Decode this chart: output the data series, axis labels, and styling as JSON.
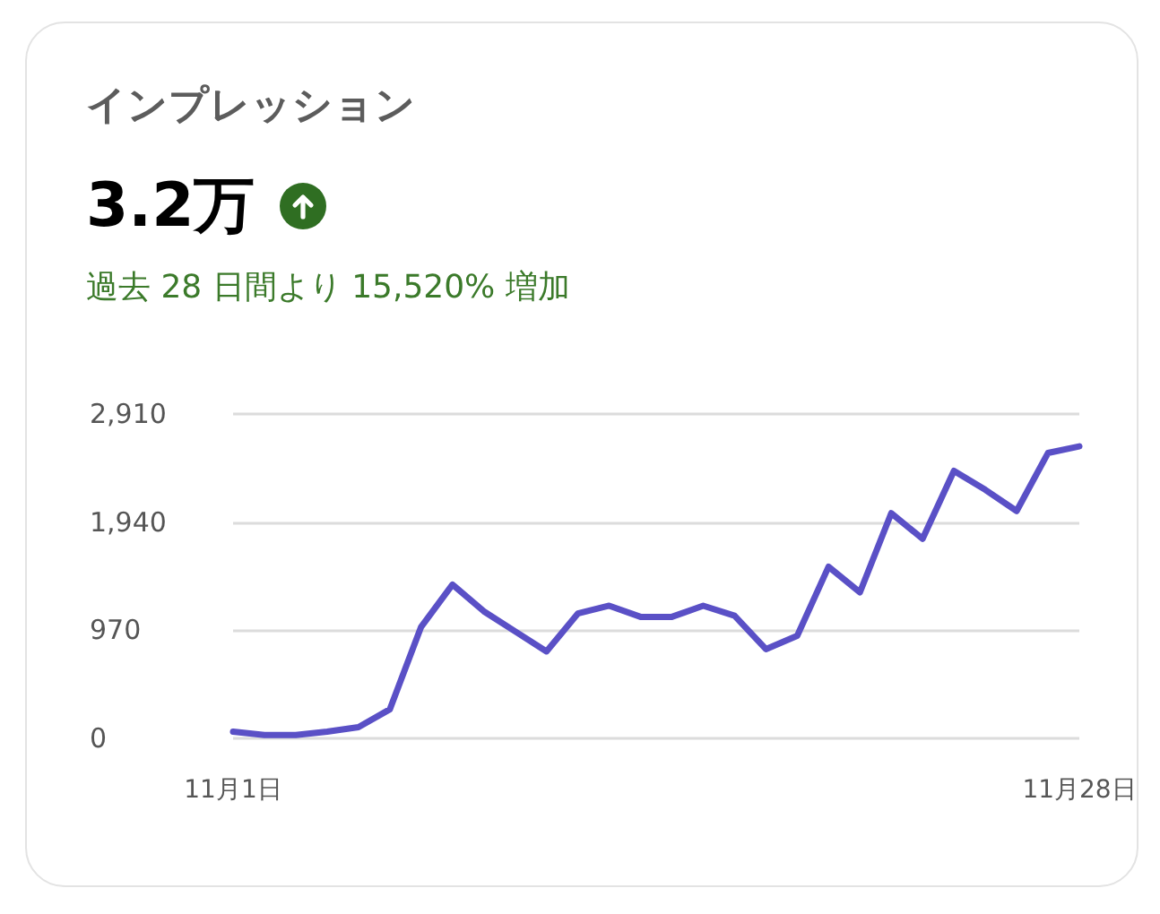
{
  "chart_data": {
    "type": "line",
    "title": "インプレッション",
    "subtitle": "3.2万",
    "annotations": [
      "過去 28 日間より 15,520% 増加"
    ],
    "categories": [
      "11月1日",
      null,
      null,
      null,
      null,
      null,
      null,
      null,
      null,
      null,
      null,
      null,
      null,
      null,
      null,
      null,
      null,
      null,
      null,
      null,
      null,
      null,
      null,
      null,
      null,
      null,
      null,
      "11月28日"
    ],
    "series": [
      {
        "color": "#5a50c6",
        "values": [
          60,
          30,
          30,
          60,
          100,
          260,
          1000,
          1380,
          1140,
          960,
          780,
          1120,
          1190,
          1090,
          1090,
          1190,
          1100,
          800,
          920,
          1540,
          1310,
          2020,
          1790,
          2400,
          2230,
          2040,
          2560,
          2620
        ]
      }
    ],
    "ylim": [
      0,
      2910
    ],
    "yticks": [
      0,
      970,
      {
        "value": 1940,
        "label": "1,940"
      },
      {
        "value": 2910,
        "label": "2,910"
      }
    ],
    "grid": "y",
    "marker": "none",
    "line_style": "solid"
  }
}
